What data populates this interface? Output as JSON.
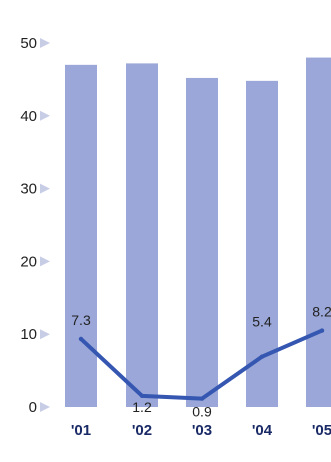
{
  "chart_data": {
    "type": "bar",
    "categories": [
      "'01",
      "'02",
      "'03",
      "'04",
      "'05"
    ],
    "series": [
      {
        "type": "bar",
        "values": [
          47,
          47.2,
          45.2,
          44.8,
          48
        ]
      },
      {
        "type": "line",
        "values": [
          7.3,
          1.2,
          0.9,
          5.4,
          8.2
        ]
      }
    ],
    "yticks": [
      "0",
      "10",
      "20",
      "30",
      "40",
      "50"
    ],
    "ylim": [
      0,
      50
    ],
    "title": "",
    "xlabel": "",
    "ylabel": "",
    "grid": false,
    "colors": {
      "bar": "#9aa7d8",
      "line": "#3557b1",
      "tick_marker": "#c8cde6",
      "category_text": "#1a2a66"
    }
  }
}
